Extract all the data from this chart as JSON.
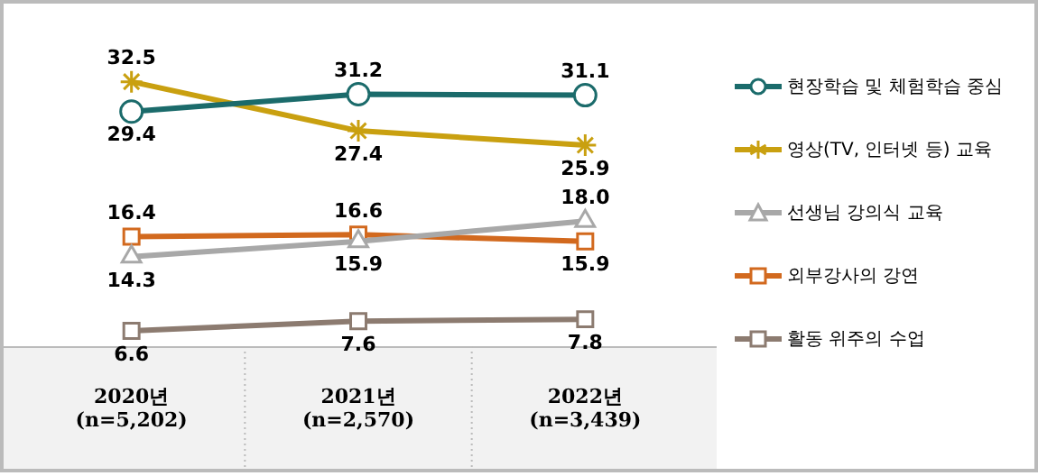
{
  "chart_data": {
    "type": "line",
    "categories": [
      "2020년\n(n=5,202)",
      "2021년\n(n=2,570)",
      "2022년\n(n=3,439)"
    ],
    "series": [
      {
        "name": "현장학습 및 체험학습 중심",
        "color": "#1b6b6b",
        "marker": "circle",
        "values": [
          29.4,
          31.2,
          31.1
        ],
        "value_labels": [
          "29.4",
          "31.2",
          "31.1"
        ]
      },
      {
        "name": "영상(TV, 인터넷 등) 교육",
        "color": "#c9a010",
        "marker": "cross",
        "values": [
          32.5,
          27.4,
          25.9
        ],
        "value_labels": [
          "32.5",
          "27.4",
          "25.9"
        ]
      },
      {
        "name": "선생님 강의식 교육",
        "color": "#a8a8a8",
        "marker": "triangle",
        "values": [
          14.3,
          15.9,
          18.0
        ],
        "value_labels": [
          "14.3",
          "15.9",
          "18.0"
        ]
      },
      {
        "name": "외부강사의 강연",
        "color": "#d2691e",
        "marker": "square",
        "values": [
          16.4,
          16.6,
          15.9
        ],
        "value_labels": [
          "16.4",
          "16.6",
          "15.9"
        ]
      },
      {
        "name": "활동 위주의 수업",
        "color": "#8c7b70",
        "marker": "square",
        "values": [
          6.6,
          7.6,
          7.8
        ],
        "value_labels": [
          "6.6",
          "7.6",
          "7.8"
        ]
      }
    ],
    "legend": "right",
    "grid": false
  }
}
